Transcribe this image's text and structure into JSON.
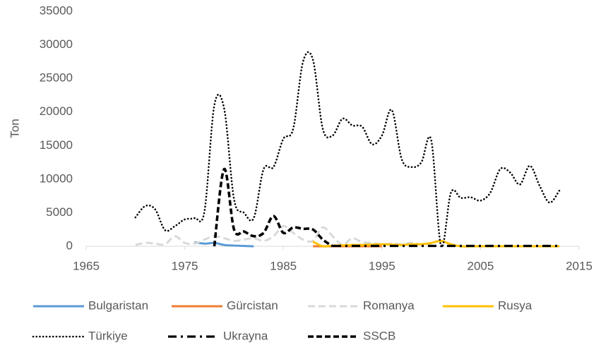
{
  "chart_data": {
    "type": "line",
    "y_label": "Ton",
    "x": [
      1970,
      1971,
      1972,
      1973,
      1974,
      1975,
      1976,
      1977,
      1978,
      1979,
      1980,
      1981,
      1982,
      1983,
      1984,
      1985,
      1986,
      1987,
      1988,
      1989,
      1990,
      1991,
      1992,
      1993,
      1994,
      1995,
      1996,
      1997,
      1998,
      1999,
      2000,
      2001,
      2002,
      2003,
      2004,
      2005,
      2006,
      2007,
      2008,
      2009,
      2010,
      2011,
      2012,
      2013
    ],
    "xlim": [
      1965,
      2015
    ],
    "xticks": [
      1965,
      1975,
      1985,
      1995,
      2005,
      2015
    ],
    "ylim": [
      0,
      35000
    ],
    "yticks": [
      0,
      5000,
      10000,
      15000,
      20000,
      25000,
      30000,
      35000
    ],
    "grid": false,
    "legend": "bottom",
    "series": [
      {
        "name": "Bulgaristan",
        "color": "#5b9bd5",
        "style": "solid",
        "values": [
          null,
          null,
          null,
          null,
          null,
          null,
          600,
          400,
          500,
          200,
          100,
          50,
          0,
          null,
          null,
          null,
          null,
          null,
          null,
          null,
          null,
          null,
          null,
          null,
          null,
          null,
          null,
          null,
          null,
          null,
          null,
          null,
          null,
          null,
          null,
          null,
          null,
          null,
          null,
          null,
          null,
          null,
          null,
          null
        ]
      },
      {
        "name": "Gürcistan",
        "color": "#ed7d31",
        "style": "solid",
        "values": [
          null,
          null,
          null,
          null,
          null,
          null,
          null,
          null,
          null,
          null,
          null,
          null,
          null,
          null,
          null,
          null,
          null,
          null,
          0,
          0,
          0,
          0,
          0,
          0,
          0,
          0,
          null,
          null,
          null,
          null,
          null,
          null,
          null,
          null,
          null,
          null,
          null,
          null,
          null,
          null,
          null,
          null,
          null,
          null
        ]
      },
      {
        "name": "Romanya",
        "color": "#d9d9d9",
        "style": "dashed",
        "values": [
          200,
          500,
          400,
          300,
          1500,
          500,
          400,
          1000,
          1500,
          1200,
          800,
          1000,
          1200,
          800,
          1500,
          3000,
          2000,
          1000,
          800,
          2800,
          1500,
          200,
          1200,
          600,
          500,
          300,
          400,
          300,
          500,
          300,
          300,
          null,
          null,
          null,
          null,
          null,
          null,
          null,
          null,
          null,
          null,
          null,
          null,
          null
        ]
      },
      {
        "name": "Rusya",
        "color": "#ffc000",
        "style": "solid",
        "values": [
          null,
          null,
          null,
          null,
          null,
          null,
          null,
          null,
          null,
          null,
          null,
          null,
          null,
          null,
          null,
          null,
          null,
          null,
          700,
          0,
          100,
          150,
          200,
          200,
          250,
          300,
          250,
          200,
          300,
          300,
          500,
          800,
          300,
          0,
          0,
          0,
          0,
          0,
          0,
          0,
          0,
          0,
          0,
          0
        ]
      },
      {
        "name": "Türkiye",
        "color": "#000000",
        "style": "dotted",
        "values": [
          4300,
          6000,
          5500,
          2400,
          3000,
          4000,
          4200,
          5200,
          21000,
          20500,
          7000,
          5000,
          4200,
          11500,
          11800,
          16000,
          17500,
          27500,
          27800,
          17500,
          16500,
          19000,
          18000,
          17800,
          15200,
          16500,
          20300,
          13000,
          11800,
          12500,
          15800,
          0,
          8000,
          7200,
          7300,
          6800,
          8000,
          11500,
          11000,
          9200,
          12000,
          9000,
          6500,
          8300
        ]
      },
      {
        "name": "Ukrayna",
        "color": "#000000",
        "style": "dashdot",
        "values": [
          null,
          null,
          null,
          null,
          null,
          null,
          null,
          null,
          null,
          null,
          null,
          null,
          null,
          null,
          null,
          null,
          null,
          null,
          null,
          null,
          50,
          50,
          50,
          50,
          50,
          50,
          50,
          50,
          50,
          50,
          50,
          50,
          50,
          50,
          50,
          50,
          50,
          50,
          50,
          50,
          50,
          50,
          50,
          50
        ]
      },
      {
        "name": "SSCB",
        "color": "#000000",
        "style": "dashed-bold",
        "values": [
          null,
          null,
          null,
          null,
          null,
          null,
          null,
          null,
          0,
          11500,
          2500,
          2200,
          1500,
          2000,
          4500,
          2000,
          2800,
          2600,
          2500,
          1000,
          0,
          null,
          null,
          null,
          null,
          null,
          null,
          null,
          null,
          null,
          null,
          null,
          null,
          null,
          null,
          null,
          null,
          null,
          null,
          null,
          null,
          null,
          null,
          null
        ]
      }
    ]
  }
}
